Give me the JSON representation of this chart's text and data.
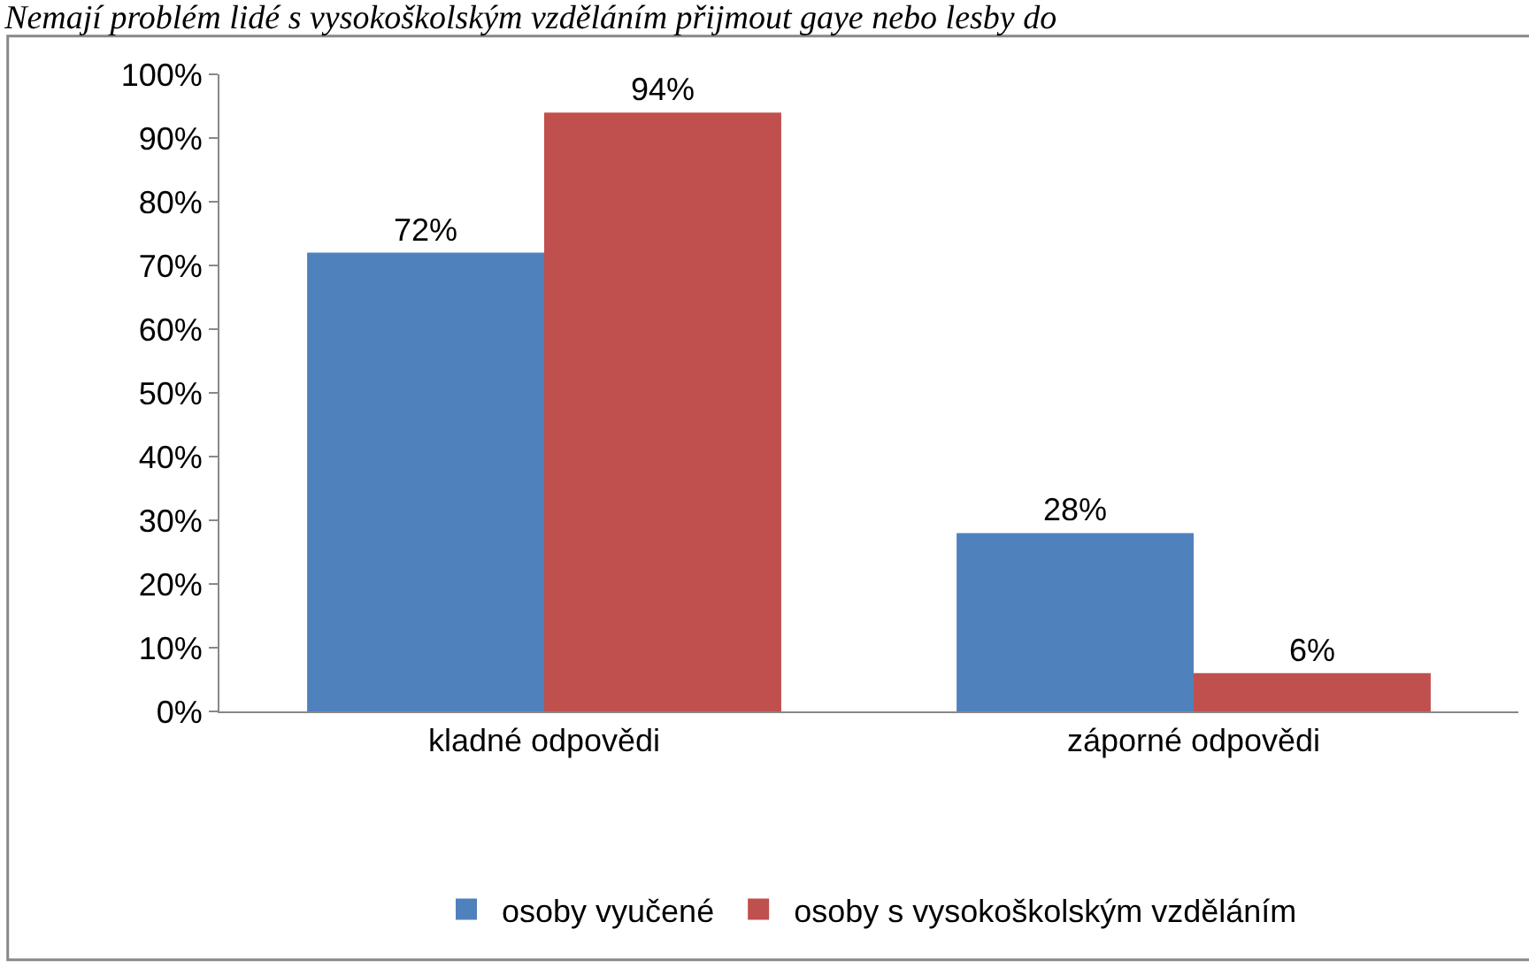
{
  "chart_data": {
    "type": "bar",
    "title": "Nemají problém lidé s vysokoškolským vzděláním přijmout gaye nebo lesby do",
    "categories": [
      "kladné odpovědi",
      "záporné odpovědi"
    ],
    "series": [
      {
        "name": "osoby vyučené",
        "color": "#4f81bd",
        "values": [
          72,
          28
        ]
      },
      {
        "name": "osoby s vysokoškolským vzděláním",
        "color": "#c0504d",
        "values": [
          94,
          6
        ]
      }
    ],
    "value_labels": [
      [
        "72%",
        "28%"
      ],
      [
        "94%",
        "6%"
      ]
    ],
    "ylim": [
      0,
      100
    ],
    "yticks": [
      {
        "value": 0,
        "label": "0%"
      },
      {
        "value": 10,
        "label": "10%"
      },
      {
        "value": 20,
        "label": "20%"
      },
      {
        "value": 30,
        "label": "30%"
      },
      {
        "value": 40,
        "label": "40%"
      },
      {
        "value": 50,
        "label": "50%"
      },
      {
        "value": 60,
        "label": "60%"
      },
      {
        "value": 70,
        "label": "70%"
      },
      {
        "value": 80,
        "label": "80%"
      },
      {
        "value": 90,
        "label": "90%"
      },
      {
        "value": 100,
        "label": "100%"
      }
    ],
    "legend": "bottom"
  }
}
